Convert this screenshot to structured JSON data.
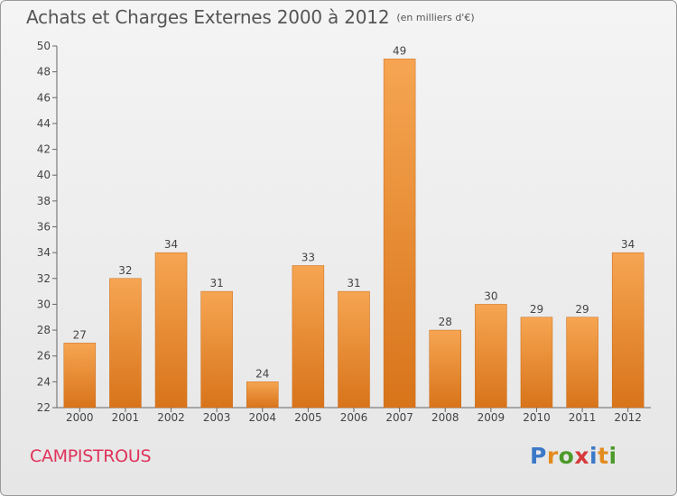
{
  "title": "Achats et Charges Externes 2000 à 2012",
  "unit_note": "(en milliers d'€)",
  "location": "CAMPISTROUS",
  "brand": {
    "text": "Proxiti",
    "colors": [
      "#3b78c8",
      "#e38b1f",
      "#4c9a2a",
      "#d63a3a",
      "#3b78c8",
      "#e38b1f",
      "#4c9a2a"
    ]
  },
  "colors": {
    "bar_light": "#f6a552",
    "bar_dark": "#d8741a",
    "axis": "#666666",
    "grid": "#cccccc"
  },
  "chart_data": {
    "type": "bar",
    "categories": [
      "2000",
      "2001",
      "2002",
      "2003",
      "2004",
      "2005",
      "2006",
      "2007",
      "2008",
      "2009",
      "2010",
      "2011",
      "2012"
    ],
    "values": [
      27,
      32,
      34,
      31,
      24,
      33,
      31,
      49,
      28,
      30,
      29,
      29,
      34
    ],
    "ylim": [
      22,
      50
    ],
    "yticks": [
      22,
      24,
      26,
      28,
      30,
      32,
      34,
      36,
      38,
      40,
      42,
      44,
      46,
      48,
      50
    ],
    "grid": false,
    "data_labels": true
  }
}
